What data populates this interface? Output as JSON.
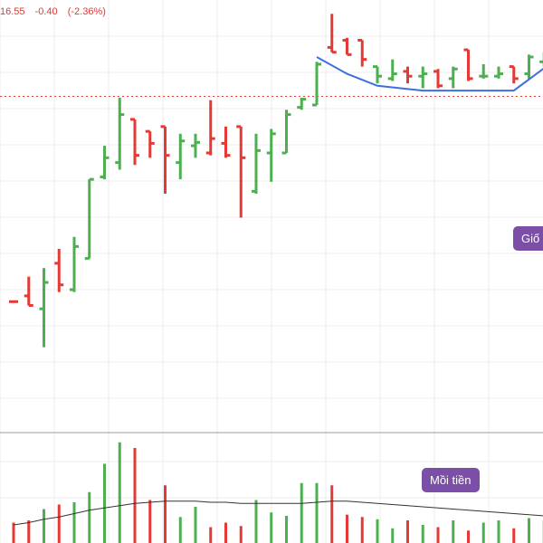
{
  "header": {
    "price": "16.55",
    "change": "-0.40",
    "change_pct": "(-2.36%)"
  },
  "colors": {
    "up": "#4caf50",
    "down": "#e53935",
    "pattern_line": "#3d6fe0",
    "highlight": "#f2e200",
    "volume_ma": "#333333",
    "callout": "#7b4ea8"
  },
  "annotations": {
    "callout_volume": "Mồi tiền",
    "callout_price": "Giố"
  },
  "chart_data": {
    "type": "ohlc",
    "ylim": [
      0,
      1
    ],
    "dotted_level": 0.818,
    "grid": true,
    "bars": [
      {
        "o": 0.39,
        "h": 0.39,
        "l": 0.39,
        "c": 0.39,
        "dir": "down"
      },
      {
        "o": 0.402,
        "h": 0.442,
        "l": 0.382,
        "c": 0.382,
        "dir": "down"
      },
      {
        "o": 0.375,
        "h": 0.46,
        "l": 0.295,
        "c": 0.43,
        "dir": "up"
      },
      {
        "o": 0.47,
        "h": 0.5,
        "l": 0.41,
        "c": 0.425,
        "dir": "down"
      },
      {
        "o": 0.415,
        "h": 0.525,
        "l": 0.41,
        "c": 0.505,
        "dir": "up"
      },
      {
        "o": 0.48,
        "h": 0.645,
        "l": 0.48,
        "c": 0.645,
        "dir": "up"
      },
      {
        "o": 0.65,
        "h": 0.715,
        "l": 0.645,
        "c": 0.69,
        "dir": "up"
      },
      {
        "o": 0.68,
        "h": 0.815,
        "l": 0.665,
        "c": 0.78,
        "dir": "up"
      },
      {
        "o": 0.77,
        "h": 0.77,
        "l": 0.675,
        "c": 0.695,
        "dir": "down"
      },
      {
        "o": 0.745,
        "h": 0.745,
        "l": 0.69,
        "c": 0.72,
        "dir": "down"
      },
      {
        "o": 0.755,
        "h": 0.755,
        "l": 0.615,
        "c": 0.695,
        "dir": "down"
      },
      {
        "o": 0.68,
        "h": 0.74,
        "l": 0.645,
        "c": 0.725,
        "dir": "up"
      },
      {
        "o": 0.715,
        "h": 0.74,
        "l": 0.69,
        "c": 0.722,
        "dir": "up"
      },
      {
        "o": 0.7,
        "h": 0.81,
        "l": 0.695,
        "c": 0.73,
        "dir": "down"
      },
      {
        "o": 0.72,
        "h": 0.755,
        "l": 0.69,
        "c": 0.695,
        "dir": "down"
      },
      {
        "o": 0.755,
        "h": 0.755,
        "l": 0.565,
        "c": 0.69,
        "dir": "down"
      },
      {
        "o": 0.62,
        "h": 0.74,
        "l": 0.615,
        "c": 0.705,
        "dir": "up"
      },
      {
        "o": 0.7,
        "h": 0.75,
        "l": 0.64,
        "c": 0.74,
        "dir": "up"
      },
      {
        "o": 0.7,
        "h": 0.79,
        "l": 0.7,
        "c": 0.78,
        "dir": "up"
      },
      {
        "o": 0.795,
        "h": 0.815,
        "l": 0.79,
        "c": 0.812,
        "dir": "up"
      },
      {
        "o": 0.8,
        "h": 0.89,
        "l": 0.8,
        "c": 0.885,
        "dir": "up"
      },
      {
        "o": 0.92,
        "h": 0.99,
        "l": 0.91,
        "c": 0.91,
        "dir": "down"
      },
      {
        "o": 0.935,
        "h": 0.94,
        "l": 0.905,
        "c": 0.905,
        "dir": "down"
      },
      {
        "o": 0.935,
        "h": 0.935,
        "l": 0.88,
        "c": 0.895,
        "dir": "down"
      },
      {
        "o": 0.88,
        "h": 0.88,
        "l": 0.845,
        "c": 0.86,
        "dir": "up"
      },
      {
        "o": 0.855,
        "h": 0.895,
        "l": 0.85,
        "c": 0.865,
        "dir": "up"
      },
      {
        "o": 0.87,
        "h": 0.88,
        "l": 0.845,
        "c": 0.86,
        "dir": "down"
      },
      {
        "o": 0.86,
        "h": 0.88,
        "l": 0.835,
        "c": 0.865,
        "dir": "up"
      },
      {
        "o": 0.87,
        "h": 0.875,
        "l": 0.835,
        "c": 0.84,
        "dir": "down"
      },
      {
        "o": 0.855,
        "h": 0.88,
        "l": 0.835,
        "c": 0.875,
        "dir": "up"
      },
      {
        "o": 0.915,
        "h": 0.915,
        "l": 0.85,
        "c": 0.855,
        "dir": "down"
      },
      {
        "o": 0.86,
        "h": 0.885,
        "l": 0.855,
        "c": 0.86,
        "dir": "up"
      },
      {
        "o": 0.86,
        "h": 0.88,
        "l": 0.855,
        "c": 0.865,
        "dir": "up"
      },
      {
        "o": 0.88,
        "h": 0.88,
        "l": 0.845,
        "c": 0.855,
        "dir": "down"
      },
      {
        "o": 0.865,
        "h": 0.905,
        "l": 0.855,
        "c": 0.9,
        "dir": "up"
      },
      {
        "o": 0.89,
        "h": 0.91,
        "l": 0.88,
        "c": 0.905,
        "dir": "up"
      },
      {
        "o": 0.905,
        "h": 0.965,
        "l": 0.895,
        "c": 0.955,
        "dir": "up"
      },
      {
        "o": 0.93,
        "h": 0.96,
        "l": 0.89,
        "c": 0.905,
        "dir": "down"
      },
      {
        "o": 0.915,
        "h": 0.93,
        "l": 0.895,
        "c": 0.92,
        "dir": "up"
      },
      {
        "o": 0.915,
        "h": 0.915,
        "l": 0.88,
        "c": 0.895,
        "dir": "down"
      }
    ],
    "volume": {
      "values": [
        0.18,
        0.2,
        0.3,
        0.34,
        0.36,
        0.45,
        0.7,
        0.89,
        0.84,
        0.38,
        0.51,
        0.23,
        0.32,
        0.14,
        0.18,
        0.15,
        0.38,
        0.27,
        0.24,
        0.53,
        0.53,
        0.51,
        0.25,
        0.23,
        0.21,
        0.13,
        0.2,
        0.16,
        0.14,
        0.2,
        0.11,
        0.18,
        0.2,
        0.13,
        0.22,
        0.2,
        0.3,
        0.21,
        0.2,
        0.2
      ],
      "ma": [
        0.16,
        0.18,
        0.21,
        0.23,
        0.26,
        0.29,
        0.31,
        0.33,
        0.35,
        0.36,
        0.37,
        0.37,
        0.37,
        0.36,
        0.36,
        0.35,
        0.35,
        0.35,
        0.35,
        0.35,
        0.36,
        0.37,
        0.37,
        0.36,
        0.35,
        0.34,
        0.33,
        0.32,
        0.31,
        0.3,
        0.29,
        0.28,
        0.27,
        0.26,
        0.25,
        0.24,
        0.24,
        0.23,
        0.22,
        0.21
      ],
      "ylim": [
        0,
        1
      ]
    },
    "pattern": {
      "bar_indices": [
        20,
        22,
        24,
        27,
        30,
        33,
        36
      ],
      "values": [
        0.9,
        0.865,
        0.84,
        0.83,
        0.83,
        0.83,
        0.9
      ]
    },
    "highlight_bars": [
      37,
      39
    ]
  }
}
